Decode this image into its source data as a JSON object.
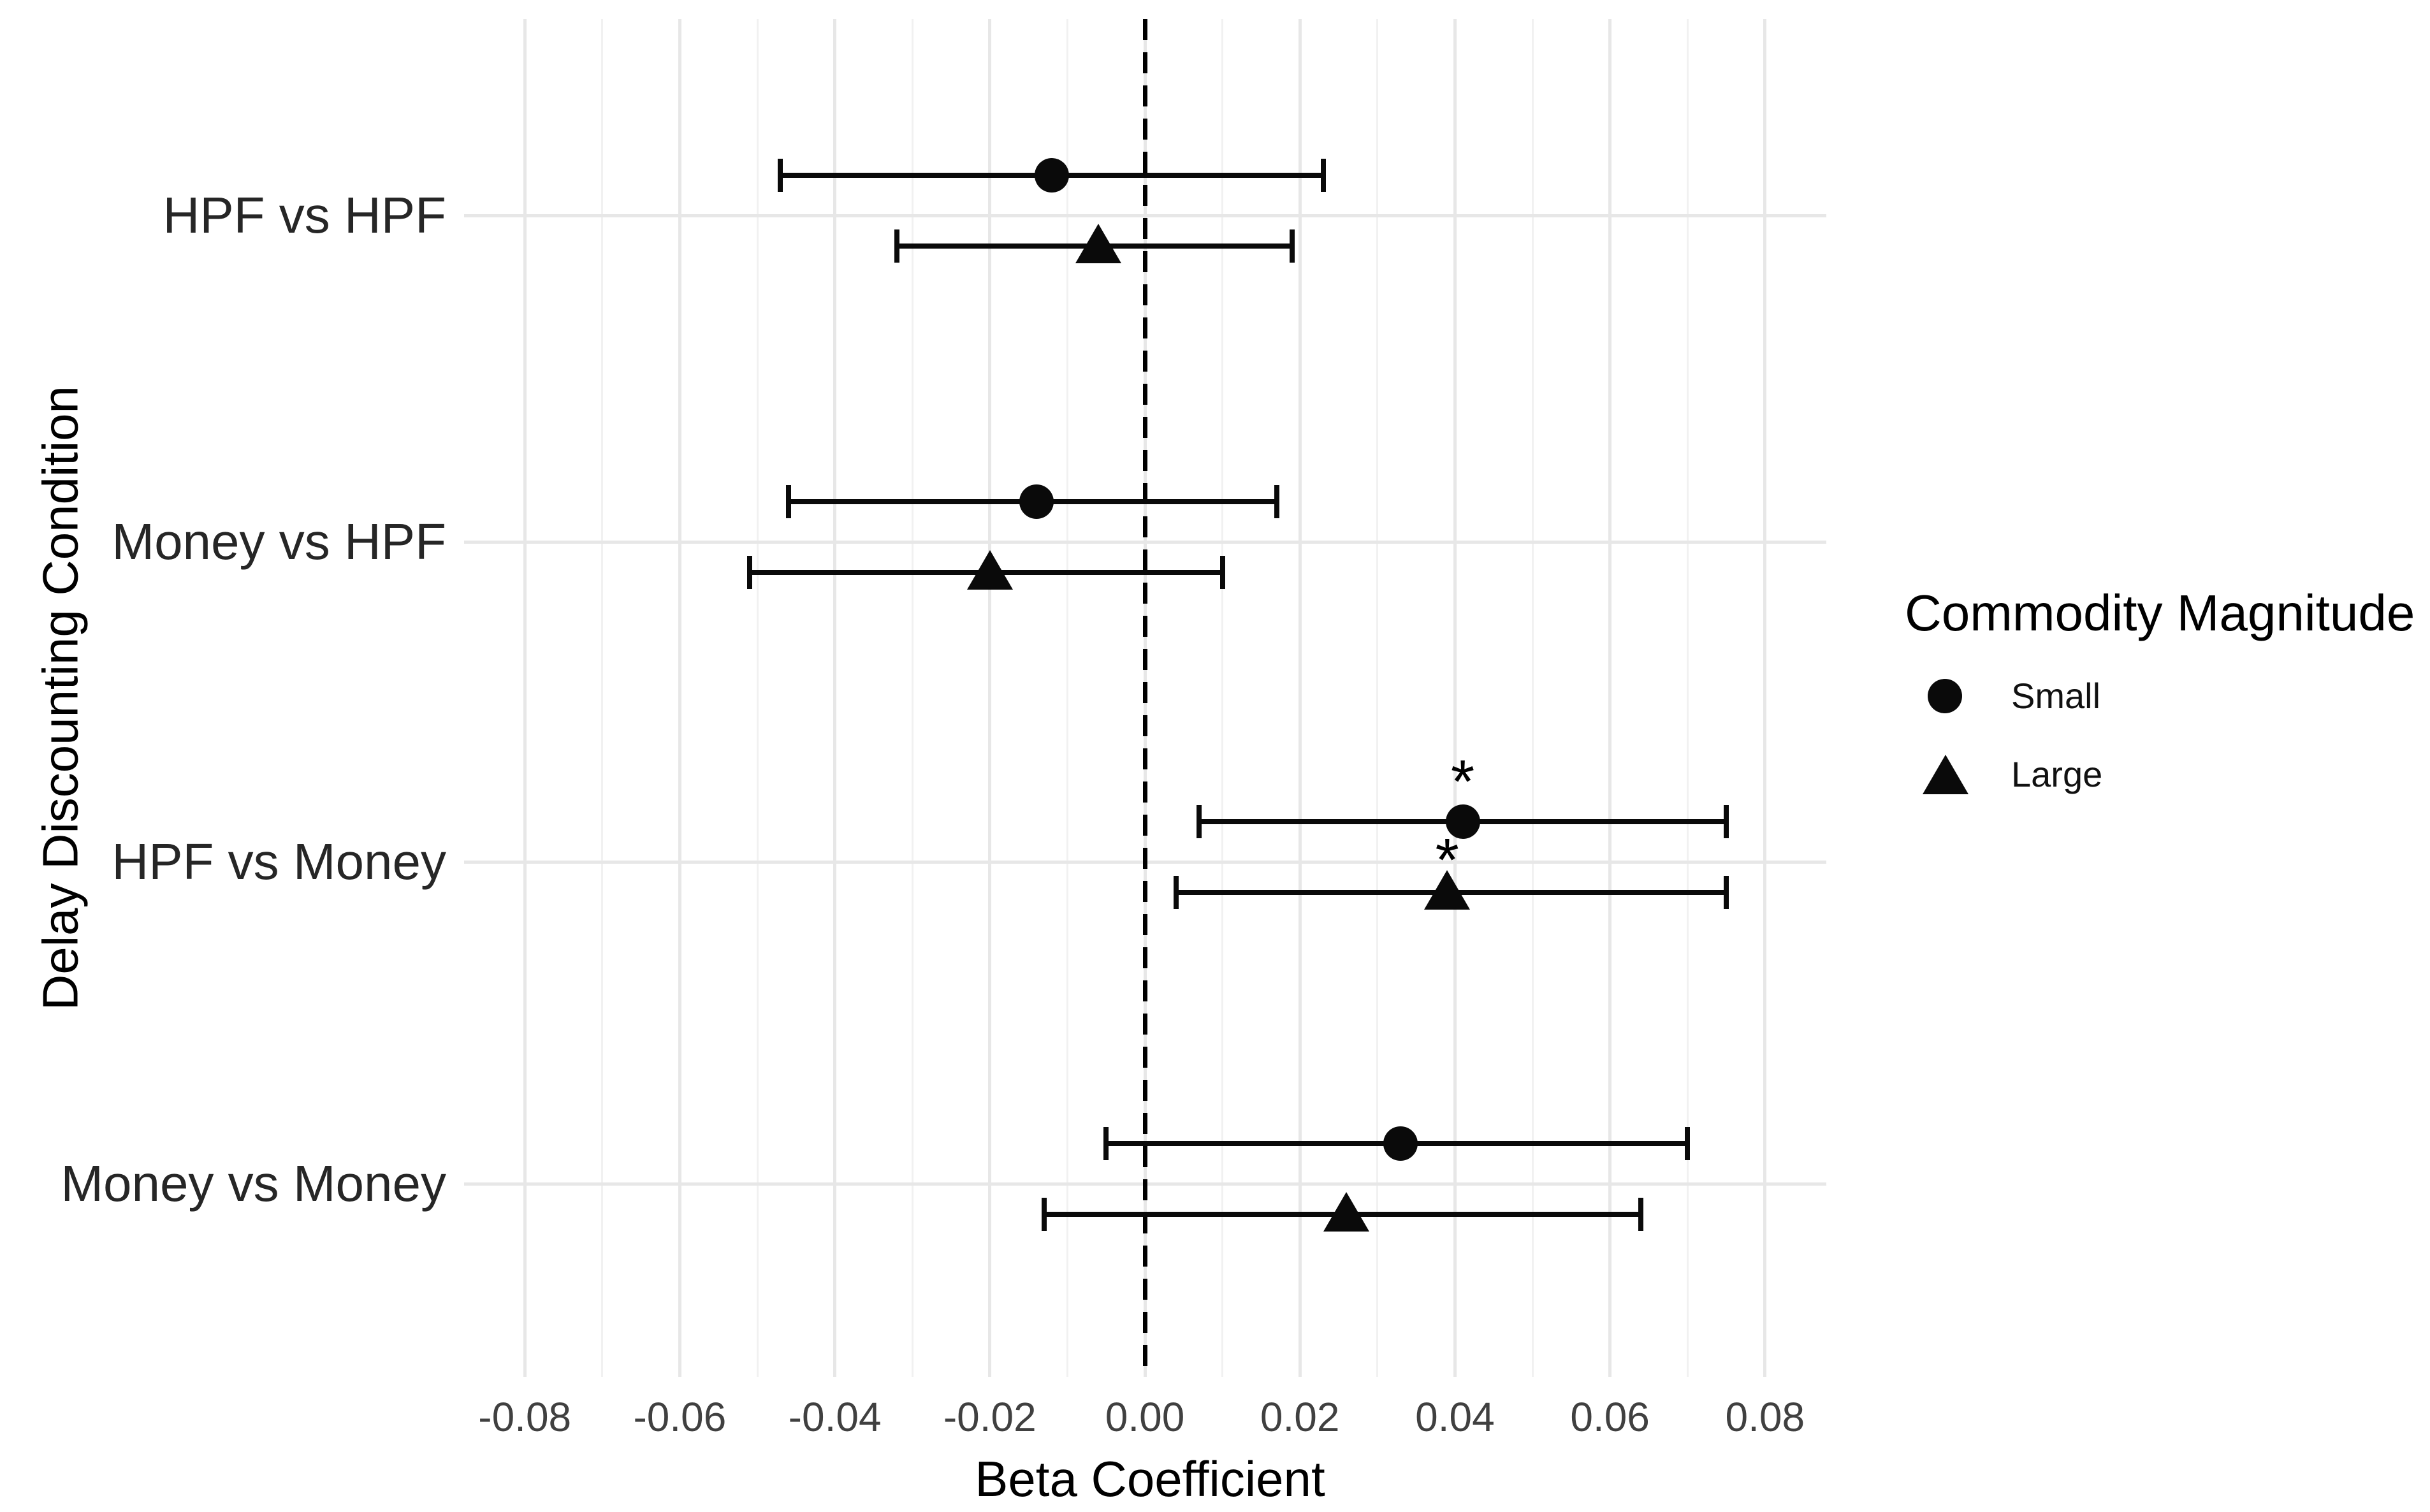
{
  "chart_data": {
    "type": "scatter",
    "variant": "forest-dot-whisker",
    "title": "",
    "xlabel": "Beta Coefficient",
    "ylabel": "Delay Discounting Condition",
    "xlim": [
      -0.088,
      0.088
    ],
    "x_tick_labels": [
      "-0.08",
      "-0.06",
      "-0.04",
      "-0.02",
      "0.00",
      "0.02",
      "0.04",
      "0.06",
      "0.08"
    ],
    "x_tick_values": [
      -0.08,
      -0.06,
      -0.04,
      -0.02,
      0.0,
      0.02,
      0.04,
      0.06,
      0.08
    ],
    "x_minor_tick_values": [
      -0.07,
      -0.05,
      -0.03,
      -0.01,
      0.01,
      0.03,
      0.05,
      0.07
    ],
    "categories": [
      "HPF vs HPF",
      "Money vs HPF",
      "HPF vs Money",
      "Money vs Money"
    ],
    "grid": "major+minor",
    "legend_position": "right",
    "reference_line_x": 0,
    "significance_symbol": "*",
    "ink_color": "#0a0a0a",
    "grid_major_color": "#e7e7e7",
    "grid_minor_color": "#f1f1f1",
    "legend": {
      "title": "Commodity Magnitude",
      "entries": [
        {
          "marker": "circle",
          "label": "Small"
        },
        {
          "marker": "triangle",
          "label": "Large"
        }
      ]
    },
    "series": [
      {
        "name": "Small",
        "marker": "circle",
        "points": [
          {
            "category": "HPF vs HPF",
            "estimate": -0.012,
            "ci_low": -0.047,
            "ci_high": 0.023,
            "significant": false
          },
          {
            "category": "Money vs HPF",
            "estimate": -0.014,
            "ci_low": -0.046,
            "ci_high": 0.017,
            "significant": false
          },
          {
            "category": "HPF vs Money",
            "estimate": 0.041,
            "ci_low": 0.007,
            "ci_high": 0.075,
            "significant": true
          },
          {
            "category": "Money vs Money",
            "estimate": 0.033,
            "ci_low": -0.005,
            "ci_high": 0.07,
            "significant": false
          }
        ]
      },
      {
        "name": "Large",
        "marker": "triangle",
        "points": [
          {
            "category": "HPF vs HPF",
            "estimate": -0.006,
            "ci_low": -0.032,
            "ci_high": 0.019,
            "significant": false
          },
          {
            "category": "Money vs HPF",
            "estimate": -0.02,
            "ci_low": -0.051,
            "ci_high": 0.01,
            "significant": false
          },
          {
            "category": "HPF vs Money",
            "estimate": 0.039,
            "ci_low": 0.004,
            "ci_high": 0.075,
            "significant": true
          },
          {
            "category": "Money vs Money",
            "estimate": 0.026,
            "ci_low": -0.013,
            "ci_high": 0.064,
            "significant": false
          }
        ]
      }
    ]
  }
}
